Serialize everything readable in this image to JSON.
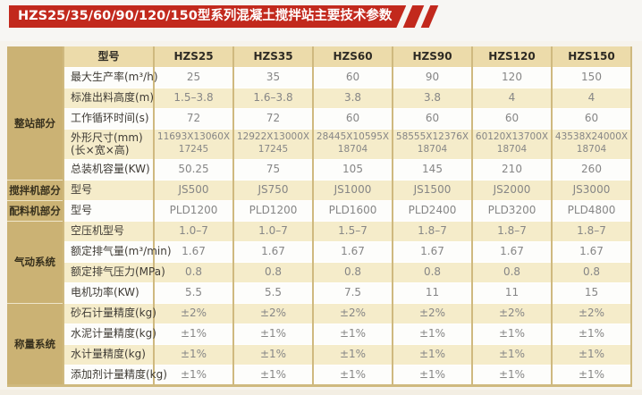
{
  "title": "HZS25/35/60/90/120/150型系列混凝土搅拌站主要技术参数",
  "colors": {
    "banner_red": "#c2291d",
    "band_tan": "#cbb274",
    "header_bg": "#ecdbaa",
    "row_cream": "#f5ecca",
    "row_white": "#fdfdfb",
    "border_tan": "#cfb97f",
    "page_bg": "#f6f3ec",
    "label_text": "#3f3b35",
    "value_text": "#868686",
    "group_text": "#37301d"
  },
  "table": {
    "model_header": "型号",
    "columns": [
      "HZS25",
      "HZS35",
      "HZS60",
      "HZS90",
      "HZS120",
      "HZS150"
    ],
    "groups": [
      {
        "label": "整站部分",
        "rows": [
          {
            "label": "最大生产率(m³/h)",
            "values": [
              "25",
              "35",
              "60",
              "90",
              "120",
              "150"
            ]
          },
          {
            "label": "标准出料高度(m)",
            "values": [
              "1.5–3.8",
              "1.6–3.8",
              "3.8",
              "3.8",
              "4",
              "4"
            ]
          },
          {
            "label": "工作循环时间(s)",
            "values": [
              "72",
              "72",
              "60",
              "60",
              "60",
              "60"
            ]
          },
          {
            "label": "外形尺寸(mm)\n(长×宽×高)",
            "values": [
              "11693X13060X\n17245",
              "12922X13000X\n17245",
              "28445X10595X\n18704",
              "58555X12376X\n18704",
              "60120X13700X\n18704",
              "43538X24000X\n18704"
            ]
          },
          {
            "label": "总装机容量(KW)",
            "values": [
              "50.25",
              "75",
              "105",
              "145",
              "210",
              "260"
            ]
          }
        ]
      },
      {
        "label": "搅拌机部分",
        "rows": [
          {
            "label": "型号",
            "values": [
              "JS500",
              "JS750",
              "JS1000",
              "JS1500",
              "JS2000",
              "JS3000"
            ]
          }
        ]
      },
      {
        "label": "配料机部分",
        "rows": [
          {
            "label": "型号",
            "values": [
              "PLD1200",
              "PLD1200",
              "PLD1600",
              "PLD2400",
              "PLD3200",
              "PLD4800"
            ]
          }
        ]
      },
      {
        "label": "气动系统",
        "rows": [
          {
            "label": "空压机型号",
            "values": [
              "1.0–7",
              "1.0–7",
              "1.5–7",
              "1.8–7",
              "1.8–7",
              "1.8–7"
            ]
          },
          {
            "label": "额定排气量(m³/min)",
            "values": [
              "1.67",
              "1.67",
              "1.67",
              "1.67",
              "1.67",
              "1.67"
            ]
          },
          {
            "label": "额定排气压力(MPa)",
            "values": [
              "0.8",
              "0.8",
              "0.8",
              "0.8",
              "0.8",
              "0.8"
            ]
          },
          {
            "label": "电机功率(KW)",
            "values": [
              "5.5",
              "5.5",
              "7.5",
              "11",
              "11",
              "15"
            ]
          }
        ]
      },
      {
        "label": "称量系统",
        "rows": [
          {
            "label": "砂石计量精度(kg)",
            "values": [
              "±2%",
              "±2%",
              "±2%",
              "±2%",
              "±2%",
              "±2%"
            ]
          },
          {
            "label": "水泥计量精度(kg)",
            "values": [
              "±1%",
              "±1%",
              "±1%",
              "±1%",
              "±1%",
              "±1%"
            ]
          },
          {
            "label": "水计量精度(kg)",
            "values": [
              "±1%",
              "±1%",
              "±1%",
              "±1%",
              "±1%",
              "±1%"
            ]
          },
          {
            "label": "添加剂计量精度(kg)",
            "values": [
              "±1%",
              "±1%",
              "±1%",
              "±1%",
              "±1%",
              "±1%"
            ]
          }
        ]
      }
    ]
  }
}
